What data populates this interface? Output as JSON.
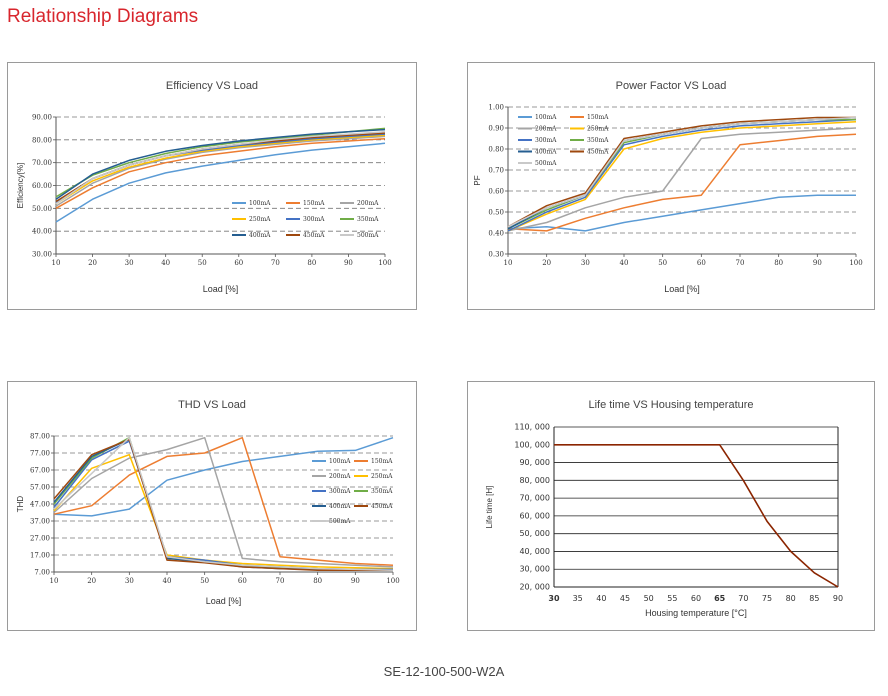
{
  "page": {
    "title": "Relationship Diagrams",
    "model": "SE-12-100-500-W2A"
  },
  "chart_data": [
    {
      "id": "eff",
      "type": "line",
      "title": "Efficiency VS Load",
      "xlabel": "Load [%]",
      "ylabel": "Efficiency[%]",
      "xlim": [
        10,
        100
      ],
      "ylim": [
        30,
        90
      ],
      "x_ticks": [
        10,
        20,
        30,
        40,
        50,
        60,
        70,
        80,
        90,
        100
      ],
      "y_ticks": [
        30,
        40,
        50,
        60,
        70,
        80,
        90
      ],
      "y_tick_labels": [
        "30.00",
        "40.00",
        "50.00",
        "60.00",
        "70.00",
        "80.00",
        "90.00"
      ],
      "grid": true,
      "legend_position": "inside-bottom-right",
      "legend_columns": 3,
      "x": [
        10,
        20,
        30,
        40,
        50,
        60,
        70,
        80,
        90,
        100
      ],
      "series": [
        {
          "name": "100mA",
          "color": "#5b9bd5",
          "values": [
            44,
            54,
            61,
            65.5,
            68.5,
            71,
            73.5,
            75.5,
            77,
            78.5
          ]
        },
        {
          "name": "150mA",
          "color": "#ed7d31",
          "values": [
            50,
            59,
            66,
            70,
            73,
            75,
            77,
            78.5,
            79.5,
            80.5
          ]
        },
        {
          "name": "200mA",
          "color": "#a5a5a5",
          "values": [
            51,
            61,
            67.5,
            71.5,
            74.5,
            76.5,
            78,
            79.5,
            80.5,
            81.5
          ]
        },
        {
          "name": "250mA",
          "color": "#ffc000",
          "values": [
            52,
            62,
            68,
            72,
            75,
            77,
            78.5,
            80,
            81,
            82
          ]
        },
        {
          "name": "300mA",
          "color": "#4472c4",
          "values": [
            52.5,
            63,
            69,
            73,
            75.5,
            77.5,
            79,
            80.5,
            81.5,
            82.5
          ]
        },
        {
          "name": "350mA",
          "color": "#70ad47",
          "values": [
            55,
            64.5,
            70,
            74,
            77,
            79,
            80.5,
            82,
            83.5,
            85
          ]
        },
        {
          "name": "400mA",
          "color": "#255e91",
          "values": [
            54,
            65,
            71,
            75,
            77.5,
            79.5,
            81,
            82.5,
            83.5,
            84.5
          ]
        },
        {
          "name": "450mA",
          "color": "#9e480e",
          "values": [
            53,
            63,
            69,
            73,
            76,
            78,
            79.5,
            81,
            82,
            83
          ]
        },
        {
          "name": "500mA",
          "color": "#c9c9c9",
          "values": [
            52,
            63,
            69,
            73,
            76,
            78,
            80,
            81.5,
            82.5,
            83.5
          ]
        }
      ]
    },
    {
      "id": "pf",
      "type": "line",
      "title": "Power Factor VS Load",
      "xlabel": "Load [%]",
      "ylabel": "PF",
      "xlim": [
        10,
        100
      ],
      "ylim": [
        0.3,
        1.0
      ],
      "x_ticks": [
        10,
        20,
        30,
        40,
        50,
        60,
        70,
        80,
        90,
        100
      ],
      "y_ticks": [
        0.3,
        0.4,
        0.5,
        0.6,
        0.7,
        0.8,
        0.9,
        1.0
      ],
      "y_tick_labels": [
        "0.30",
        "0.40",
        "0.50",
        "0.60",
        "0.70",
        "0.80",
        "0.90",
        "1.00"
      ],
      "grid": true,
      "legend_position": "inside-top-left",
      "legend_columns": 2,
      "x": [
        10,
        20,
        30,
        40,
        50,
        60,
        70,
        80,
        90,
        100
      ],
      "series": [
        {
          "name": "100mA",
          "color": "#5b9bd5",
          "values": [
            0.42,
            0.43,
            0.41,
            0.45,
            0.48,
            0.51,
            0.54,
            0.57,
            0.58,
            0.58
          ]
        },
        {
          "name": "150mA",
          "color": "#ed7d31",
          "values": [
            0.42,
            0.41,
            0.47,
            0.52,
            0.56,
            0.58,
            0.82,
            0.84,
            0.86,
            0.87
          ]
        },
        {
          "name": "200mA",
          "color": "#a5a5a5",
          "values": [
            0.41,
            0.45,
            0.52,
            0.57,
            0.6,
            0.85,
            0.87,
            0.88,
            0.89,
            0.9
          ]
        },
        {
          "name": "250mA",
          "color": "#ffc000",
          "values": [
            0.41,
            0.49,
            0.56,
            0.8,
            0.85,
            0.88,
            0.9,
            0.91,
            0.92,
            0.93
          ]
        },
        {
          "name": "300mA",
          "color": "#4472c4",
          "values": [
            0.41,
            0.5,
            0.57,
            0.82,
            0.86,
            0.89,
            0.91,
            0.92,
            0.93,
            0.94
          ]
        },
        {
          "name": "350mA",
          "color": "#70ad47",
          "values": [
            0.42,
            0.51,
            0.58,
            0.83,
            0.87,
            0.9,
            0.92,
            0.93,
            0.94,
            0.94
          ]
        },
        {
          "name": "400mA",
          "color": "#255e91",
          "values": [
            0.42,
            0.52,
            0.58,
            0.84,
            0.87,
            0.9,
            0.92,
            0.93,
            0.94,
            0.95
          ]
        },
        {
          "name": "450mA",
          "color": "#9e480e",
          "values": [
            0.43,
            0.53,
            0.59,
            0.85,
            0.88,
            0.91,
            0.93,
            0.94,
            0.95,
            0.95
          ]
        },
        {
          "name": "500mA",
          "color": "#c9c9c9",
          "values": [
            0.43,
            0.52,
            0.58,
            0.84,
            0.87,
            0.9,
            0.92,
            0.93,
            0.94,
            0.95
          ]
        }
      ]
    },
    {
      "id": "thd",
      "type": "line",
      "title": "THD VS Load",
      "xlabel": "Load [%]",
      "ylabel": "THD",
      "xlim": [
        10,
        100
      ],
      "ylim": [
        7,
        87
      ],
      "x_ticks": [
        10,
        20,
        30,
        40,
        50,
        60,
        70,
        80,
        90,
        100
      ],
      "y_ticks": [
        7,
        17,
        27,
        37,
        47,
        57,
        67,
        77,
        87
      ],
      "y_tick_labels": [
        "7.00",
        "17.00",
        "27.00",
        "37.00",
        "47.00",
        "57.00",
        "67.00",
        "77.00",
        "87.00"
      ],
      "grid": true,
      "legend_position": "inside-right",
      "legend_columns": 2,
      "x": [
        10,
        20,
        30,
        40,
        50,
        60,
        70,
        80,
        90,
        100
      ],
      "series": [
        {
          "name": "100mA",
          "color": "#5b9bd5",
          "values": [
            41,
            40,
            44,
            61,
            67,
            72,
            75,
            78,
            78.5,
            86
          ]
        },
        {
          "name": "150mA",
          "color": "#ed7d31",
          "values": [
            41,
            46,
            64,
            75,
            77,
            86,
            16,
            14,
            12,
            11
          ]
        },
        {
          "name": "200mA",
          "color": "#a5a5a5",
          "values": [
            42,
            62,
            74,
            79,
            86,
            15,
            13,
            12,
            11,
            10
          ]
        },
        {
          "name": "250mA",
          "color": "#ffc000",
          "values": [
            43,
            68,
            76,
            17,
            14,
            12,
            11,
            10,
            9.5,
            9
          ]
        },
        {
          "name": "300mA",
          "color": "#4472c4",
          "values": [
            45,
            73,
            84,
            16,
            14,
            11,
            10,
            9,
            8.5,
            8.5
          ]
        },
        {
          "name": "350mA",
          "color": "#70ad47",
          "values": [
            47,
            74,
            86,
            15,
            13,
            11,
            9.5,
            8.5,
            8,
            8
          ]
        },
        {
          "name": "400mA",
          "color": "#255e91",
          "values": [
            48,
            75,
            85,
            15,
            13,
            10,
            9,
            8.5,
            8,
            8
          ]
        },
        {
          "name": "450mA",
          "color": "#9e480e",
          "values": [
            50,
            76,
            85,
            14,
            12.5,
            10,
            9,
            8,
            8,
            8
          ]
        },
        {
          "name": "500mA",
          "color": "#c9c9c9",
          "values": [
            44,
            65,
            86,
            16,
            13,
            11,
            10,
            9,
            8.5,
            8
          ]
        }
      ]
    },
    {
      "id": "life",
      "type": "line",
      "title": "Life time VS Housing temperature",
      "xlabel": "Housing temperature [°C]",
      "ylabel": "Life time [H]",
      "xlim": [
        30,
        90
      ],
      "ylim": [
        20000,
        110000
      ],
      "x_ticks": [
        30,
        35,
        40,
        45,
        50,
        55,
        60,
        65,
        70,
        75,
        80,
        85,
        90
      ],
      "x_tick_labels": [
        "30",
        "35",
        "40",
        "45",
        "50",
        "55",
        "60",
        "65",
        "70",
        "75",
        "80",
        "85",
        "90"
      ],
      "x_bold_ticks": [
        "30",
        "65"
      ],
      "y_ticks": [
        20000,
        30000,
        40000,
        50000,
        60000,
        70000,
        80000,
        90000,
        100000,
        110000
      ],
      "y_tick_labels": [
        "20, 000",
        "30, 000",
        "40, 000",
        "50, 000",
        "60, 000",
        "70, 000",
        "80, 000",
        "90, 000",
        "100, 000",
        "110, 000"
      ],
      "grid": true,
      "series": [
        {
          "color": "#8b2500",
          "x": [
            30,
            65,
            70,
            75,
            80,
            85,
            90
          ],
          "values": [
            100000,
            100000,
            80000,
            57000,
            40000,
            28000,
            20000
          ]
        }
      ]
    }
  ]
}
